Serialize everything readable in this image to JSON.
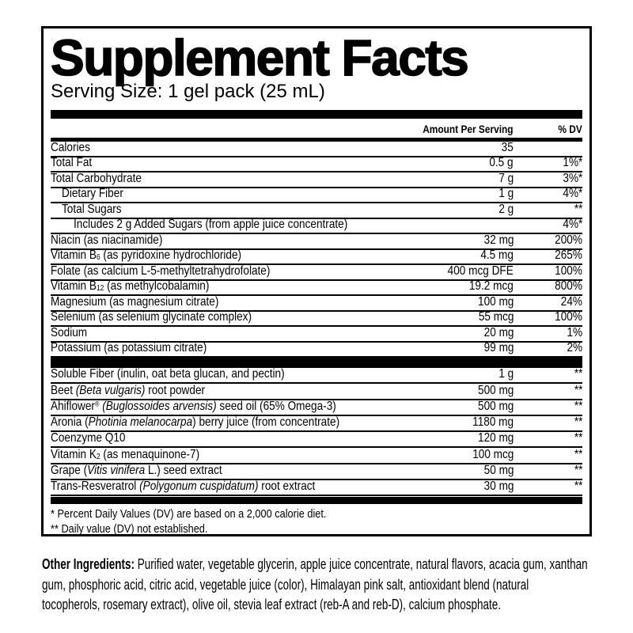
{
  "label": {
    "title": "Supplement Facts",
    "serving_size": "Serving Size: 1 gel pack (25 mL)",
    "columns": {
      "amount": "Amount Per Serving",
      "dv": "% DV"
    },
    "sections": [
      {
        "rows": [
          {
            "indent": 0,
            "name": [
              {
                "t": "Calories"
              }
            ],
            "amount": "35",
            "dv": ""
          },
          {
            "indent": 0,
            "name": [
              {
                "t": "Total Fat"
              }
            ],
            "amount": "0.5 g",
            "dv": "1%*"
          },
          {
            "indent": 0,
            "name": [
              {
                "t": "Total Carbohydrate"
              }
            ],
            "amount": "7 g",
            "dv": "3%*"
          },
          {
            "indent": 14,
            "name": [
              {
                "t": "Dietary Fiber"
              }
            ],
            "amount": "1 g",
            "dv": "4%*"
          },
          {
            "indent": 14,
            "name": [
              {
                "t": "Total Sugars"
              }
            ],
            "amount": "2 g",
            "dv": "**"
          },
          {
            "indent": 29,
            "name": [
              {
                "t": "Includes 2 g Added Sugars (from apple juice concentrate)"
              }
            ],
            "amount": "",
            "dv": "4%*"
          },
          {
            "indent": 0,
            "name": [
              {
                "t": "Niacin (as niacinamide)"
              }
            ],
            "amount": "32 mg",
            "dv": "200%"
          },
          {
            "indent": 0,
            "name": [
              {
                "t": "Vitamin B"
              },
              {
                "t": "6",
                "sub": true
              },
              {
                "t": " (as pyridoxine hydrochloride)"
              }
            ],
            "amount": "4.5 mg",
            "dv": "265%"
          },
          {
            "indent": 0,
            "name": [
              {
                "t": "Folate (as calcium L-5-methyltetrahydrofolate)"
              }
            ],
            "amount": "400 mcg DFE",
            "dv": "100%"
          },
          {
            "indent": 0,
            "name": [
              {
                "t": "Vitamin B"
              },
              {
                "t": "12",
                "sub": true
              },
              {
                "t": " (as methylcobalamin)"
              }
            ],
            "amount": "19.2 mcg",
            "dv": "800%"
          },
          {
            "indent": 0,
            "name": [
              {
                "t": "Magnesium (as magnesium citrate)"
              }
            ],
            "amount": "100 mg",
            "dv": "24%"
          },
          {
            "indent": 0,
            "name": [
              {
                "t": "Selenium (as selenium glycinate complex)"
              }
            ],
            "amount": "55 mcg",
            "dv": "100%"
          },
          {
            "indent": 0,
            "name": [
              {
                "t": "Sodium"
              }
            ],
            "amount": "20 mg",
            "dv": "1%"
          },
          {
            "indent": 0,
            "name": [
              {
                "t": "Potassium (as potassium citrate)"
              }
            ],
            "amount": "99 mg",
            "dv": "2%"
          }
        ]
      },
      {
        "rows": [
          {
            "indent": 0,
            "name": [
              {
                "t": "Soluble Fiber (inulin, oat beta glucan, and pectin)"
              }
            ],
            "amount": "1 g",
            "dv": "**"
          },
          {
            "indent": 0,
            "name": [
              {
                "t": "Beet "
              },
              {
                "t": "(Beta vulgaris)",
                "i": true
              },
              {
                "t": " root powder"
              }
            ],
            "amount": "500 mg",
            "dv": "**"
          },
          {
            "indent": 0,
            "name": [
              {
                "t": "Ahiflower"
              },
              {
                "t": "®",
                "sup": true
              },
              {
                "t": " "
              },
              {
                "t": "(Buglossoides arvensis)",
                "i": true
              },
              {
                "t": " seed oil (65% Omega-3)"
              }
            ],
            "amount": "500 mg",
            "dv": "**"
          },
          {
            "indent": 0,
            "name": [
              {
                "t": "Aronia ("
              },
              {
                "t": "Photinia melanocarpa",
                "i": true
              },
              {
                "t": ") berry juice (from concentrate)"
              }
            ],
            "amount": "1180 mg",
            "dv": "**"
          },
          {
            "indent": 0,
            "name": [
              {
                "t": "Coenzyme Q10"
              }
            ],
            "amount": "120 mg",
            "dv": "**"
          },
          {
            "indent": 0,
            "name": [
              {
                "t": "Vitamin K"
              },
              {
                "t": "2",
                "sub": true
              },
              {
                "t": " (as menaquinone-7)"
              }
            ],
            "amount": "100 mcg",
            "dv": "**"
          },
          {
            "indent": 0,
            "name": [
              {
                "t": "Grape ("
              },
              {
                "t": "Vitis vinifera",
                "i": true
              },
              {
                "t": " L.) seed extract"
              }
            ],
            "amount": "50 mg",
            "dv": "**"
          },
          {
            "indent": 0,
            "name": [
              {
                "t": "Trans-Resveratrol "
              },
              {
                "t": "(Polygonum cuspidatum)",
                "i": true
              },
              {
                "t": " root extract"
              }
            ],
            "amount": "30 mg",
            "dv": "**"
          }
        ]
      }
    ],
    "footnotes": [
      "* Percent Daily Values (DV) are based on a 2,000 calorie diet.",
      "** Daily value (DV) not established."
    ]
  },
  "other_ingredients": {
    "label": "Other Ingredients:",
    "text": " Purified water, vegetable glycerin, apple juice concentrate, natural flavors, acacia gum, xanthan gum, phosphoric acid, citric acid, vegetable juice (color), Himalayan pink salt, antioxidant blend (natural tocopherols, rosemary extract), olive oil, stevia leaf extract (reb-A and reb-D), calcium phosphate."
  }
}
